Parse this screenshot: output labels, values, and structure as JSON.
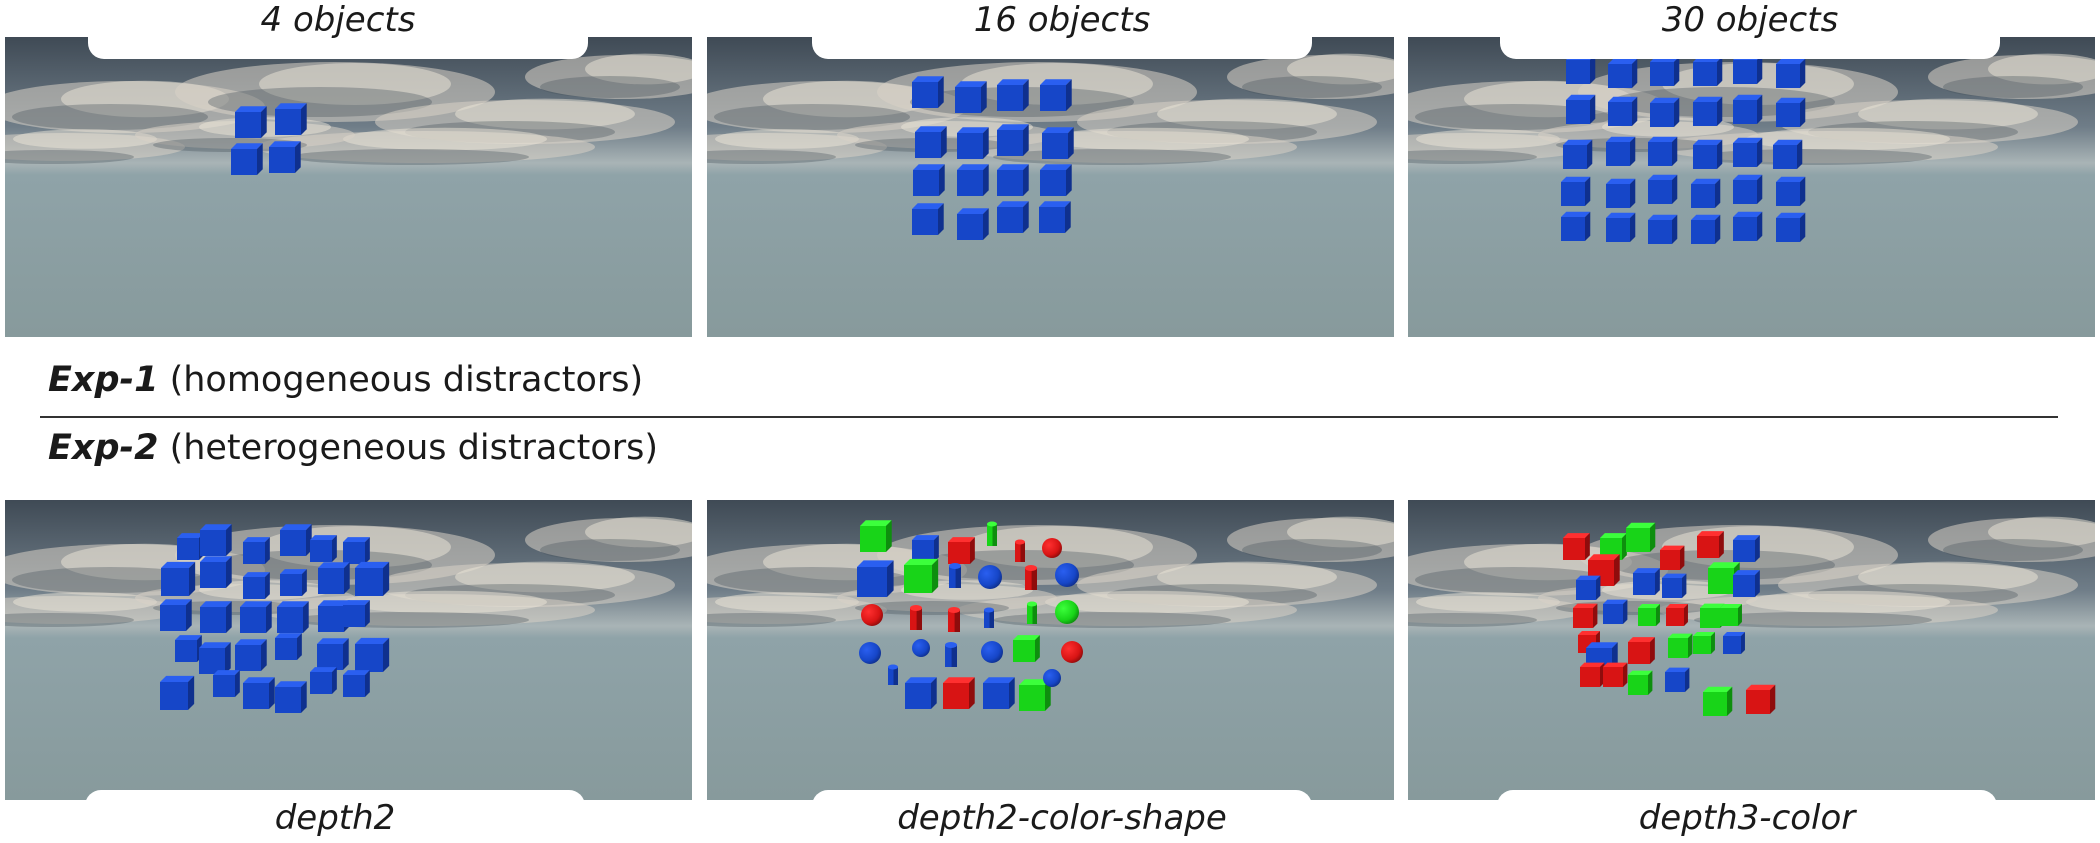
{
  "top_captions": [
    "4 objects",
    "16 objects",
    "30 objects"
  ],
  "bottom_captions": [
    "depth2",
    "depth2-color-shape",
    "depth3-color"
  ],
  "exp1": {
    "name": "Exp-1",
    "desc": "(homogeneous distractors)"
  },
  "exp2": {
    "name": "Exp-2",
    "desc": "(heterogeneous distractors)"
  },
  "colors": {
    "blue": "#1f4fd6",
    "red": "#e01818",
    "green": "#22e022",
    "sky": "#5d6c7a",
    "ground": "#8fa3a8"
  }
}
